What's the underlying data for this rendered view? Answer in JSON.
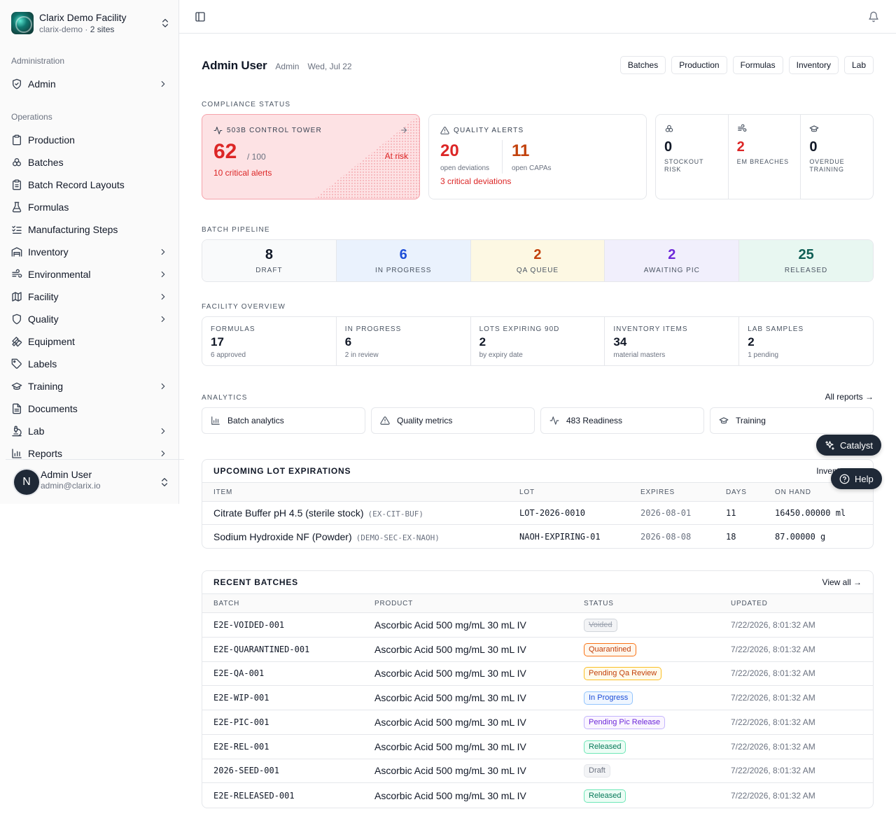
{
  "facility": {
    "name": "Clarix Demo Facility",
    "slug": "clarix-demo",
    "sites": "2 sites"
  },
  "sidebar": {
    "admin_label": "Administration",
    "admin_items": [
      {
        "label": "Admin",
        "icon": "shield-icon",
        "chevron": true
      }
    ],
    "ops_label": "Operations",
    "ops_items": [
      {
        "label": "Production",
        "icon": "clipboard-icon",
        "chevron": false
      },
      {
        "label": "Batches",
        "icon": "boxes-icon",
        "chevron": false
      },
      {
        "label": "Batch Record Layouts",
        "icon": "clipboard-list-icon",
        "chevron": false
      },
      {
        "label": "Formulas",
        "icon": "flask-icon",
        "chevron": false
      },
      {
        "label": "Manufacturing Steps",
        "icon": "list-checks-icon",
        "chevron": false
      },
      {
        "label": "Inventory",
        "icon": "warehouse-icon",
        "chevron": true
      },
      {
        "label": "Environmental",
        "icon": "wind-icon",
        "chevron": true
      },
      {
        "label": "Facility",
        "icon": "map-icon",
        "chevron": true
      },
      {
        "label": "Quality",
        "icon": "shield-check-icon",
        "chevron": true
      },
      {
        "label": "Equipment",
        "icon": "wrench-icon",
        "chevron": false
      },
      {
        "label": "Labels",
        "icon": "tag-icon",
        "chevron": false
      },
      {
        "label": "Training",
        "icon": "graduation-cap-icon",
        "chevron": true
      },
      {
        "label": "Documents",
        "icon": "file-text-icon",
        "chevron": false
      },
      {
        "label": "Lab",
        "icon": "microscope-icon",
        "chevron": true
      },
      {
        "label": "Reports",
        "icon": "bar-chart-icon",
        "chevron": true
      }
    ],
    "user": {
      "initial": "N",
      "name": "Admin User",
      "email": "admin@clarix.io"
    }
  },
  "header": {
    "user_name": "Admin User",
    "role": "Admin",
    "date": "Wed, Jul 22",
    "quick_links": [
      "Batches",
      "Production",
      "Formulas",
      "Inventory",
      "Lab"
    ]
  },
  "compliance": {
    "caption": "COMPLIANCE STATUS",
    "control_tower": {
      "title": "503B CONTROL TOWER",
      "score": "62",
      "out_of": "/ 100",
      "status": "At risk",
      "alerts": "10 critical alerts"
    },
    "quality_alerts": {
      "title": "QUALITY ALERTS",
      "deviations": "20",
      "deviations_label": "open deviations",
      "capas": "11",
      "capas_label": "open CAPAs",
      "critical": "3 critical deviations"
    },
    "mini_stats": [
      {
        "value": "0",
        "label": "STOCKOUT RISK",
        "icon": "boxes-icon",
        "color": "#111827"
      },
      {
        "value": "2",
        "label": "EM BREACHES",
        "icon": "wind-icon",
        "color": "#dc2626"
      },
      {
        "value": "0",
        "label": "OVERDUE TRAINING",
        "icon": "graduation-cap-icon",
        "color": "#111827"
      }
    ]
  },
  "pipeline": {
    "caption": "BATCH PIPELINE",
    "stages": [
      {
        "value": "8",
        "label": "DRAFT",
        "bg": "#f9fafb",
        "color": "#111827",
        "label_color": "#4b5563"
      },
      {
        "value": "6",
        "label": "IN PROGRESS",
        "bg": "#eaf2fd",
        "color": "#1d4ed8",
        "label_color": "#4b5563"
      },
      {
        "value": "2",
        "label": "QA QUEUE",
        "bg": "#fdf8e3",
        "color": "#c2410c",
        "label_color": "#4b5563"
      },
      {
        "value": "2",
        "label": "AWAITING PIC",
        "bg": "#f1effc",
        "color": "#6d28d9",
        "label_color": "#4b5563"
      },
      {
        "value": "25",
        "label": "RELEASED",
        "bg": "#e8f7f1",
        "color": "#0f5e55",
        "label_color": "#4b5563"
      }
    ]
  },
  "overview": {
    "caption": "FACILITY OVERVIEW",
    "cells": [
      {
        "label": "FORMULAS",
        "value": "17",
        "sub": "6 approved"
      },
      {
        "label": "IN PROGRESS",
        "value": "6",
        "sub": "2 in review"
      },
      {
        "label": "LOTS EXPIRING 90D",
        "value": "2",
        "sub": "by expiry date"
      },
      {
        "label": "INVENTORY ITEMS",
        "value": "34",
        "sub": "material masters"
      },
      {
        "label": "LAB SAMPLES",
        "value": "2",
        "sub": "1 pending"
      }
    ]
  },
  "analytics": {
    "caption": "ANALYTICS",
    "all_reports": "All reports →",
    "items": [
      {
        "label": "Batch analytics",
        "icon": "bar-chart-icon"
      },
      {
        "label": "Quality metrics",
        "icon": "alert-triangle-icon"
      },
      {
        "label": "483 Readiness",
        "icon": "activity-icon"
      },
      {
        "label": "Training",
        "icon": "graduation-cap-icon"
      }
    ]
  },
  "expirations": {
    "title": "UPCOMING LOT EXPIRATIONS",
    "link": "Inventory →",
    "columns": [
      "ITEM",
      "LOT",
      "EXPIRES",
      "DAYS",
      "ON HAND"
    ],
    "rows": [
      {
        "item": "Citrate Buffer pH 4.5 (sterile stock)",
        "code": "(EX-CIT-BUF)",
        "lot": "LOT-2026-0010",
        "expires": "2026-08-01",
        "days": "11",
        "on_hand": "16450.00000 ml"
      },
      {
        "item": "Sodium Hydroxide NF (Powder)",
        "code": "(DEMO-SEC-EX-NAOH)",
        "lot": "NAOH-EXPIRING-01",
        "expires": "2026-08-08",
        "days": "18",
        "on_hand": "87.00000 g"
      }
    ]
  },
  "batches": {
    "title": "RECENT BATCHES",
    "link": "View all →",
    "columns": [
      "BATCH",
      "PRODUCT",
      "STATUS",
      "UPDATED"
    ],
    "rows": [
      {
        "batch": "E2E-VOIDED-001",
        "product": "Ascorbic Acid 500 mg/mL 30 mL IV",
        "status": "Voided",
        "status_style": "voided",
        "updated": "7/22/2026, 8:01:32 AM"
      },
      {
        "batch": "E2E-QUARANTINED-001",
        "product": "Ascorbic Acid 500 mg/mL 30 mL IV",
        "status": "Quarantined",
        "status_style": "quarantined",
        "updated": "7/22/2026, 8:01:32 AM"
      },
      {
        "batch": "E2E-QA-001",
        "product": "Ascorbic Acid 500 mg/mL 30 mL IV",
        "status": "Pending Qa Review",
        "status_style": "pending-qa",
        "updated": "7/22/2026, 8:01:32 AM"
      },
      {
        "batch": "E2E-WIP-001",
        "product": "Ascorbic Acid 500 mg/mL 30 mL IV",
        "status": "In Progress",
        "status_style": "in-progress",
        "updated": "7/22/2026, 8:01:32 AM"
      },
      {
        "batch": "E2E-PIC-001",
        "product": "Ascorbic Acid 500 mg/mL 30 mL IV",
        "status": "Pending Pic Release",
        "status_style": "pending-pic",
        "updated": "7/22/2026, 8:01:32 AM"
      },
      {
        "batch": "E2E-REL-001",
        "product": "Ascorbic Acid 500 mg/mL 30 mL IV",
        "status": "Released",
        "status_style": "released",
        "updated": "7/22/2026, 8:01:32 AM"
      },
      {
        "batch": "2026-SEED-001",
        "product": "Ascorbic Acid 500 mg/mL 30 mL IV",
        "status": "Draft",
        "status_style": "draft",
        "updated": "7/22/2026, 8:01:32 AM"
      },
      {
        "batch": "E2E-RELEASED-001",
        "product": "Ascorbic Acid 500 mg/mL 30 mL IV",
        "status": "Released",
        "status_style": "released",
        "updated": "7/22/2026, 8:01:32 AM"
      }
    ]
  },
  "status_colors": {
    "voided": {
      "fg": "#9ca3af",
      "bg": "#f3f4f6",
      "border": "#d1d5db"
    },
    "quarantined": {
      "fg": "#c2410c",
      "bg": "#fff7ed",
      "border": "#f97316"
    },
    "pending-qa": {
      "fg": "#c2410c",
      "bg": "#fffbeb",
      "border": "#fbbf24"
    },
    "in-progress": {
      "fg": "#1d4ed8",
      "bg": "#eff6ff",
      "border": "#93c5fd"
    },
    "pending-pic": {
      "fg": "#6d28d9",
      "bg": "#faf5ff",
      "border": "#c4b5fd"
    },
    "released": {
      "fg": "#047857",
      "bg": "#ecfdf5",
      "border": "#6ee7b7"
    },
    "draft": {
      "fg": "#6b7280",
      "bg": "#f3f4f6",
      "border": "#e5e7eb"
    }
  },
  "floating": {
    "catalyst": "Catalyst",
    "help": "Help"
  }
}
